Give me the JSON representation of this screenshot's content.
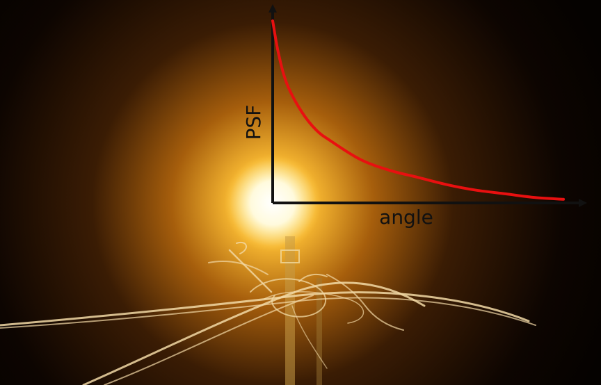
{
  "scene": {
    "background_color": "#060200",
    "glow_color": "#ffd24a",
    "wire_color": "#f2d9a6"
  },
  "chart_data": {
    "type": "line",
    "xlabel": "angle",
    "ylabel": "PSF",
    "xlim": [
      0,
      1
    ],
    "ylim": [
      0,
      1
    ],
    "grid": false,
    "legend": "none",
    "axis_color": "#111111",
    "series": [
      {
        "color": "#e81010",
        "x": [
          0.0,
          0.02,
          0.05,
          0.1,
          0.15,
          0.2,
          0.3,
          0.4,
          0.5,
          0.6,
          0.7,
          0.8,
          0.9,
          1.0
        ],
        "y": [
          1.0,
          0.82,
          0.65,
          0.5,
          0.4,
          0.34,
          0.24,
          0.18,
          0.14,
          0.1,
          0.07,
          0.05,
          0.03,
          0.02
        ]
      }
    ]
  }
}
